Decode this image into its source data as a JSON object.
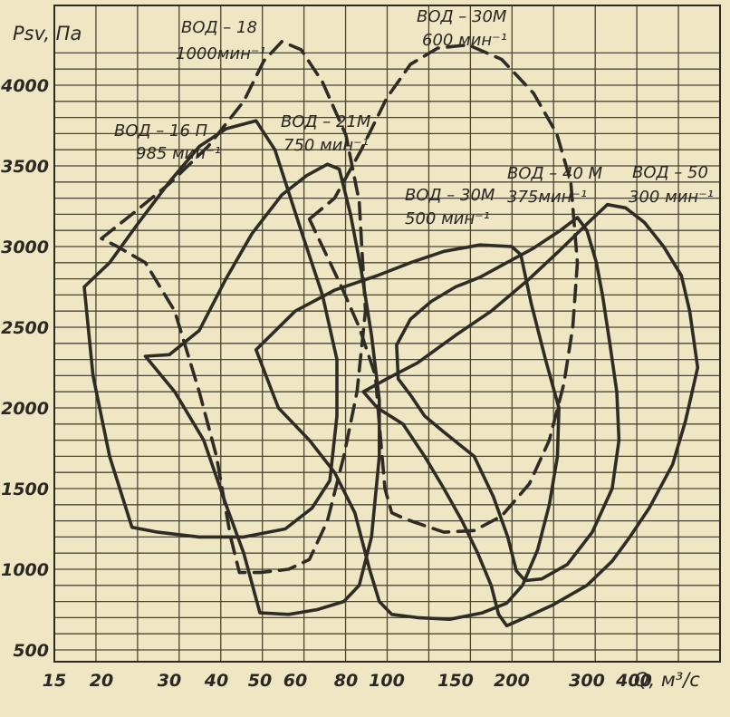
{
  "chart_data": {
    "type": "line",
    "xlabel": "Q, м³/с",
    "ylabel": "Psv, Па",
    "x_scale": "log",
    "x_ticks": [
      15,
      20,
      30,
      40,
      50,
      60,
      80,
      100,
      150,
      200,
      300,
      400
    ],
    "y_ticks": [
      500,
      1000,
      1500,
      2000,
      2500,
      3000,
      3500,
      4000
    ],
    "xlim": [
      15,
      600
    ],
    "ylim": [
      500,
      4200
    ],
    "grid": true,
    "series": [
      {
        "name": "ВОД-16П 985 мин⁻¹",
        "label_lines": [
          "ВОД – 16 П",
          "985 мин⁻¹"
        ],
        "style": "solid",
        "points": [
          [
            18,
            2750
          ],
          [
            21,
            2900
          ],
          [
            25,
            3150
          ],
          [
            30,
            3400
          ],
          [
            36,
            3620
          ],
          [
            42,
            3730
          ],
          [
            49,
            3780
          ],
          [
            54,
            3600
          ],
          [
            62,
            3100
          ],
          [
            70,
            2700
          ],
          [
            76,
            2300
          ],
          [
            76,
            1950
          ],
          [
            73,
            1550
          ],
          [
            66,
            1380
          ],
          [
            57,
            1250
          ],
          [
            46,
            1200
          ],
          [
            36,
            1200
          ],
          [
            28,
            1230
          ],
          [
            24,
            1260
          ],
          [
            21,
            1700
          ],
          [
            19,
            2200
          ],
          [
            18,
            2750
          ]
        ]
      },
      {
        "name": "ВОД-18 1000 мин⁻¹",
        "label_lines": [
          "ВОД – 18",
          "1000мин⁻¹"
        ],
        "style": "dashed",
        "points": [
          [
            20,
            3050
          ],
          [
            24,
            3200
          ],
          [
            30,
            3390
          ],
          [
            38,
            3620
          ],
          [
            46,
            3900
          ],
          [
            51,
            4150
          ],
          [
            56,
            4270
          ],
          [
            62,
            4220
          ],
          [
            70,
            4020
          ],
          [
            80,
            3690
          ],
          [
            86,
            3280
          ],
          [
            89,
            2600
          ],
          [
            85,
            2100
          ],
          [
            79,
            1700
          ],
          [
            72,
            1300
          ],
          [
            65,
            1060
          ],
          [
            58,
            1000
          ],
          [
            50,
            980
          ],
          [
            45,
            980
          ],
          [
            43,
            1200
          ],
          [
            40,
            1700
          ],
          [
            36,
            2100
          ],
          [
            31,
            2600
          ],
          [
            26,
            2900
          ],
          [
            22,
            3000
          ],
          [
            20,
            3050
          ]
        ]
      },
      {
        "name": "ВОД-21М 750 мин⁻¹",
        "label_lines": [
          "ВОД – 21М",
          "750 мин⁻¹"
        ],
        "style": "solid",
        "points": [
          [
            26,
            2320
          ],
          [
            30,
            2330
          ],
          [
            36,
            2480
          ],
          [
            42,
            2800
          ],
          [
            48,
            3080
          ],
          [
            56,
            3320
          ],
          [
            64,
            3440
          ],
          [
            72,
            3510
          ],
          [
            77,
            3480
          ],
          [
            82,
            3200
          ],
          [
            87,
            2850
          ],
          [
            92,
            2450
          ],
          [
            96,
            2050
          ],
          [
            96,
            1700
          ],
          [
            92,
            1200
          ],
          [
            86,
            900
          ],
          [
            79,
            800
          ],
          [
            68,
            750
          ],
          [
            58,
            720
          ],
          [
            50,
            730
          ],
          [
            46,
            1100
          ],
          [
            42,
            1400
          ],
          [
            37,
            1800
          ],
          [
            31,
            2100
          ],
          [
            26,
            2320
          ]
        ]
      },
      {
        "name": "ВОД-30М 600 мин⁻¹",
        "label_lines": [
          "ВОД – 30М",
          "600 мин⁻¹"
        ],
        "style": "dashed",
        "points": [
          [
            65,
            3170
          ],
          [
            75,
            3300
          ],
          [
            87,
            3600
          ],
          [
            100,
            3920
          ],
          [
            115,
            4130
          ],
          [
            135,
            4230
          ],
          [
            160,
            4250
          ],
          [
            190,
            4160
          ],
          [
            225,
            3950
          ],
          [
            255,
            3700
          ],
          [
            275,
            3400
          ],
          [
            285,
            2900
          ],
          [
            278,
            2500
          ],
          [
            265,
            2150
          ],
          [
            245,
            1800
          ],
          [
            220,
            1530
          ],
          [
            190,
            1330
          ],
          [
            165,
            1240
          ],
          [
            140,
            1230
          ],
          [
            125,
            1270
          ],
          [
            112,
            1310
          ],
          [
            103,
            1350
          ],
          [
            99,
            1500
          ],
          [
            96,
            1900
          ],
          [
            94,
            2200
          ],
          [
            86,
            2500
          ],
          [
            78,
            2750
          ],
          [
            70,
            3000
          ],
          [
            65,
            3170
          ]
        ]
      },
      {
        "name": "ВОД-30М 500 мин⁻¹",
        "label_lines": [
          "ВОД – 30М",
          "500 мин⁻¹"
        ],
        "style": "solid",
        "points": [
          [
            49,
            2360
          ],
          [
            60,
            2600
          ],
          [
            75,
            2730
          ],
          [
            95,
            2820
          ],
          [
            115,
            2900
          ],
          [
            140,
            2970
          ],
          [
            170,
            3010
          ],
          [
            200,
            3000
          ],
          [
            210,
            2950
          ],
          [
            222,
            2650
          ],
          [
            240,
            2300
          ],
          [
            258,
            2000
          ],
          [
            256,
            1700
          ],
          [
            245,
            1400
          ],
          [
            230,
            1120
          ],
          [
            212,
            900
          ],
          [
            195,
            790
          ],
          [
            172,
            730
          ],
          [
            145,
            690
          ],
          [
            120,
            700
          ],
          [
            103,
            720
          ],
          [
            96,
            800
          ],
          [
            91,
            1000
          ],
          [
            84,
            1350
          ],
          [
            75,
            1600
          ],
          [
            65,
            1800
          ],
          [
            55,
            2000
          ],
          [
            49,
            2360
          ]
        ]
      },
      {
        "name": "ВОД-40М 375 мин⁻¹",
        "label_lines": [
          "ВОД – 40 М",
          "375мин⁻¹"
        ],
        "style": "solid",
        "points": [
          [
            106,
            2390
          ],
          [
            115,
            2550
          ],
          [
            130,
            2660
          ],
          [
            150,
            2750
          ],
          [
            170,
            2810
          ],
          [
            195,
            2900
          ],
          [
            225,
            2990
          ],
          [
            260,
            3100
          ],
          [
            285,
            3180
          ],
          [
            300,
            3100
          ],
          [
            318,
            2900
          ],
          [
            330,
            2700
          ],
          [
            345,
            2400
          ],
          [
            360,
            2100
          ],
          [
            365,
            1800
          ],
          [
            350,
            1500
          ],
          [
            310,
            1230
          ],
          [
            270,
            1030
          ],
          [
            235,
            940
          ],
          [
            215,
            930
          ],
          [
            205,
            990
          ],
          [
            196,
            1200
          ],
          [
            182,
            1450
          ],
          [
            165,
            1700
          ],
          [
            140,
            1850
          ],
          [
            125,
            1950
          ],
          [
            115,
            2080
          ],
          [
            107,
            2180
          ],
          [
            106,
            2390
          ]
        ]
      },
      {
        "name": "ВОД-50 300 мин⁻¹",
        "label_lines": [
          "ВОД – 50",
          "300 мин⁻¹"
        ],
        "style": "solid",
        "points": [
          [
            88,
            2100
          ],
          [
            100,
            2180
          ],
          [
            120,
            2280
          ],
          [
            150,
            2450
          ],
          [
            180,
            2600
          ],
          [
            220,
            2800
          ],
          [
            260,
            2980
          ],
          [
            300,
            3140
          ],
          [
            340,
            3260
          ],
          [
            380,
            3240
          ],
          [
            420,
            3150
          ],
          [
            460,
            3000
          ],
          [
            500,
            2820
          ],
          [
            520,
            2600
          ],
          [
            540,
            2250
          ],
          [
            510,
            1920
          ],
          [
            480,
            1650
          ],
          [
            430,
            1380
          ],
          [
            390,
            1200
          ],
          [
            350,
            1050
          ],
          [
            300,
            900
          ],
          [
            250,
            780
          ],
          [
            215,
            700
          ],
          [
            195,
            650
          ],
          [
            187,
            720
          ],
          [
            180,
            900
          ],
          [
            168,
            1100
          ],
          [
            155,
            1300
          ],
          [
            140,
            1500
          ],
          [
            125,
            1700
          ],
          [
            110,
            1900
          ],
          [
            95,
            2000
          ],
          [
            88,
            2100
          ]
        ]
      }
    ]
  }
}
